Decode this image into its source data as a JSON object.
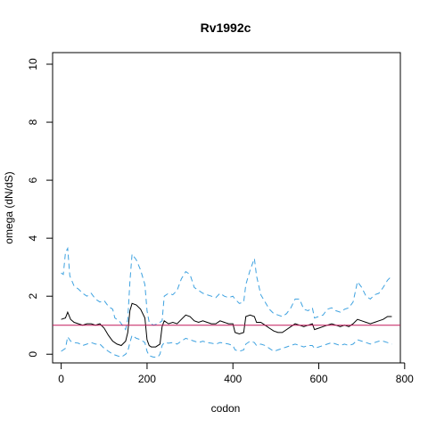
{
  "chart_data": {
    "type": "line",
    "title": "Rv1992c",
    "xlabel": "codon",
    "ylabel": "omega (dN/dS)",
    "xlim": [
      -20,
      790
    ],
    "ylim": [
      -0.3,
      10.4
    ],
    "xticks": [
      0,
      200,
      400,
      600,
      800
    ],
    "yticks": [
      0,
      2,
      4,
      6,
      8,
      10
    ],
    "grid": false,
    "reference_line": {
      "y": 1,
      "color": "#c2185b"
    },
    "series": [
      {
        "role": "estimate",
        "color": "#000000",
        "dash": "solid",
        "points": [
          [
            0,
            1.2
          ],
          [
            10,
            1.25
          ],
          [
            15,
            1.45
          ],
          [
            22,
            1.2
          ],
          [
            30,
            1.1
          ],
          [
            40,
            1.05
          ],
          [
            50,
            1.0
          ],
          [
            60,
            1.05
          ],
          [
            70,
            1.05
          ],
          [
            80,
            1.0
          ],
          [
            90,
            1.05
          ],
          [
            100,
            0.9
          ],
          [
            110,
            0.65
          ],
          [
            120,
            0.45
          ],
          [
            130,
            0.35
          ],
          [
            140,
            0.3
          ],
          [
            150,
            0.45
          ],
          [
            155,
            0.75
          ],
          [
            160,
            1.5
          ],
          [
            165,
            1.75
          ],
          [
            175,
            1.7
          ],
          [
            185,
            1.55
          ],
          [
            195,
            1.25
          ],
          [
            200,
            0.5
          ],
          [
            205,
            0.3
          ],
          [
            210,
            0.25
          ],
          [
            220,
            0.25
          ],
          [
            230,
            0.35
          ],
          [
            235,
            0.95
          ],
          [
            240,
            1.15
          ],
          [
            250,
            1.05
          ],
          [
            260,
            1.1
          ],
          [
            270,
            1.05
          ],
          [
            280,
            1.2
          ],
          [
            290,
            1.35
          ],
          [
            300,
            1.3
          ],
          [
            310,
            1.15
          ],
          [
            320,
            1.1
          ],
          [
            330,
            1.15
          ],
          [
            340,
            1.1
          ],
          [
            350,
            1.05
          ],
          [
            360,
            1.05
          ],
          [
            370,
            1.15
          ],
          [
            380,
            1.1
          ],
          [
            390,
            1.05
          ],
          [
            400,
            1.05
          ],
          [
            405,
            0.75
          ],
          [
            415,
            0.7
          ],
          [
            425,
            0.75
          ],
          [
            430,
            1.3
          ],
          [
            440,
            1.35
          ],
          [
            450,
            1.3
          ],
          [
            455,
            1.1
          ],
          [
            465,
            1.1
          ],
          [
            475,
            1.0
          ],
          [
            485,
            0.9
          ],
          [
            495,
            0.8
          ],
          [
            505,
            0.75
          ],
          [
            515,
            0.75
          ],
          [
            525,
            0.85
          ],
          [
            535,
            0.95
          ],
          [
            545,
            1.05
          ],
          [
            555,
            1.0
          ],
          [
            565,
            0.95
          ],
          [
            575,
            1.0
          ],
          [
            585,
            1.05
          ],
          [
            590,
            0.85
          ],
          [
            600,
            0.9
          ],
          [
            610,
            0.95
          ],
          [
            620,
            1.0
          ],
          [
            630,
            1.05
          ],
          [
            640,
            1.0
          ],
          [
            650,
            0.95
          ],
          [
            660,
            1.0
          ],
          [
            670,
            0.95
          ],
          [
            680,
            1.05
          ],
          [
            690,
            1.2
          ],
          [
            700,
            1.15
          ],
          [
            710,
            1.1
          ],
          [
            720,
            1.05
          ],
          [
            730,
            1.1
          ],
          [
            740,
            1.15
          ],
          [
            750,
            1.2
          ],
          [
            760,
            1.3
          ],
          [
            770,
            1.3
          ]
        ]
      },
      {
        "role": "upper bound",
        "color": "#3ea2e0",
        "dash": "6,4",
        "points": [
          [
            0,
            2.8
          ],
          [
            5,
            2.75
          ],
          [
            10,
            3.5
          ],
          [
            15,
            3.65
          ],
          [
            20,
            2.7
          ],
          [
            30,
            2.35
          ],
          [
            40,
            2.25
          ],
          [
            50,
            2.1
          ],
          [
            60,
            2.0
          ],
          [
            70,
            2.1
          ],
          [
            80,
            1.9
          ],
          [
            90,
            1.8
          ],
          [
            100,
            1.85
          ],
          [
            110,
            1.65
          ],
          [
            120,
            1.55
          ],
          [
            125,
            1.25
          ],
          [
            135,
            1.15
          ],
          [
            145,
            0.95
          ],
          [
            150,
            0.85
          ],
          [
            155,
            1.2
          ],
          [
            160,
            2.5
          ],
          [
            165,
            3.45
          ],
          [
            175,
            3.25
          ],
          [
            185,
            2.9
          ],
          [
            195,
            2.4
          ],
          [
            200,
            1.5
          ],
          [
            205,
            1.1
          ],
          [
            215,
            1.0
          ],
          [
            225,
            1.05
          ],
          [
            235,
            1.15
          ],
          [
            240,
            2.0
          ],
          [
            250,
            2.1
          ],
          [
            260,
            2.05
          ],
          [
            270,
            2.2
          ],
          [
            280,
            2.6
          ],
          [
            290,
            2.85
          ],
          [
            300,
            2.75
          ],
          [
            310,
            2.3
          ],
          [
            320,
            2.2
          ],
          [
            330,
            2.1
          ],
          [
            340,
            2.05
          ],
          [
            350,
            2.0
          ],
          [
            360,
            1.95
          ],
          [
            370,
            2.1
          ],
          [
            380,
            2.0
          ],
          [
            390,
            1.95
          ],
          [
            400,
            2.0
          ],
          [
            405,
            1.9
          ],
          [
            415,
            1.75
          ],
          [
            425,
            1.8
          ],
          [
            430,
            2.4
          ],
          [
            440,
            2.9
          ],
          [
            450,
            3.3
          ],
          [
            455,
            2.7
          ],
          [
            465,
            2.05
          ],
          [
            475,
            1.8
          ],
          [
            485,
            1.55
          ],
          [
            495,
            1.4
          ],
          [
            505,
            1.35
          ],
          [
            515,
            1.3
          ],
          [
            525,
            1.4
          ],
          [
            535,
            1.6
          ],
          [
            545,
            1.9
          ],
          [
            555,
            1.9
          ],
          [
            565,
            1.55
          ],
          [
            575,
            1.5
          ],
          [
            585,
            1.6
          ],
          [
            590,
            1.25
          ],
          [
            600,
            1.3
          ],
          [
            610,
            1.35
          ],
          [
            620,
            1.55
          ],
          [
            630,
            1.6
          ],
          [
            640,
            1.5
          ],
          [
            650,
            1.45
          ],
          [
            660,
            1.55
          ],
          [
            670,
            1.6
          ],
          [
            680,
            1.8
          ],
          [
            690,
            2.5
          ],
          [
            700,
            2.3
          ],
          [
            710,
            2.0
          ],
          [
            720,
            1.9
          ],
          [
            730,
            2.05
          ],
          [
            740,
            2.1
          ],
          [
            750,
            2.3
          ],
          [
            760,
            2.55
          ],
          [
            770,
            2.7
          ]
        ]
      },
      {
        "role": "lower bound",
        "color": "#3ea2e0",
        "dash": "6,4",
        "points": [
          [
            0,
            0.1
          ],
          [
            10,
            0.2
          ],
          [
            15,
            0.6
          ],
          [
            22,
            0.45
          ],
          [
            30,
            0.4
          ],
          [
            40,
            0.38
          ],
          [
            50,
            0.3
          ],
          [
            60,
            0.35
          ],
          [
            70,
            0.4
          ],
          [
            80,
            0.35
          ],
          [
            90,
            0.35
          ],
          [
            100,
            0.2
          ],
          [
            110,
            0.1
          ],
          [
            120,
            0.0
          ],
          [
            130,
            -0.05
          ],
          [
            140,
            -0.1
          ],
          [
            150,
            0.0
          ],
          [
            155,
            0.1
          ],
          [
            160,
            0.4
          ],
          [
            165,
            0.65
          ],
          [
            175,
            0.55
          ],
          [
            185,
            0.5
          ],
          [
            195,
            0.4
          ],
          [
            200,
            0.1
          ],
          [
            205,
            -0.05
          ],
          [
            215,
            -0.1
          ],
          [
            225,
            -0.1
          ],
          [
            230,
            0.0
          ],
          [
            235,
            0.3
          ],
          [
            240,
            0.4
          ],
          [
            250,
            0.38
          ],
          [
            260,
            0.4
          ],
          [
            270,
            0.35
          ],
          [
            280,
            0.45
          ],
          [
            290,
            0.55
          ],
          [
            300,
            0.5
          ],
          [
            310,
            0.45
          ],
          [
            320,
            0.4
          ],
          [
            330,
            0.45
          ],
          [
            340,
            0.4
          ],
          [
            350,
            0.38
          ],
          [
            360,
            0.35
          ],
          [
            370,
            0.4
          ],
          [
            380,
            0.38
          ],
          [
            390,
            0.35
          ],
          [
            400,
            0.3
          ],
          [
            405,
            0.15
          ],
          [
            415,
            0.1
          ],
          [
            425,
            0.15
          ],
          [
            430,
            0.35
          ],
          [
            440,
            0.45
          ],
          [
            450,
            0.4
          ],
          [
            455,
            0.3
          ],
          [
            465,
            0.35
          ],
          [
            475,
            0.3
          ],
          [
            485,
            0.2
          ],
          [
            495,
            0.1
          ],
          [
            505,
            0.15
          ],
          [
            515,
            0.2
          ],
          [
            525,
            0.25
          ],
          [
            535,
            0.3
          ],
          [
            545,
            0.35
          ],
          [
            555,
            0.3
          ],
          [
            565,
            0.25
          ],
          [
            575,
            0.3
          ],
          [
            585,
            0.3
          ],
          [
            590,
            0.2
          ],
          [
            600,
            0.25
          ],
          [
            610,
            0.3
          ],
          [
            620,
            0.35
          ],
          [
            630,
            0.4
          ],
          [
            640,
            0.35
          ],
          [
            650,
            0.3
          ],
          [
            660,
            0.35
          ],
          [
            670,
            0.3
          ],
          [
            680,
            0.35
          ],
          [
            690,
            0.5
          ],
          [
            700,
            0.45
          ],
          [
            710,
            0.4
          ],
          [
            720,
            0.35
          ],
          [
            730,
            0.4
          ],
          [
            740,
            0.45
          ],
          [
            750,
            0.45
          ],
          [
            760,
            0.4
          ],
          [
            770,
            0.35
          ]
        ]
      }
    ]
  }
}
